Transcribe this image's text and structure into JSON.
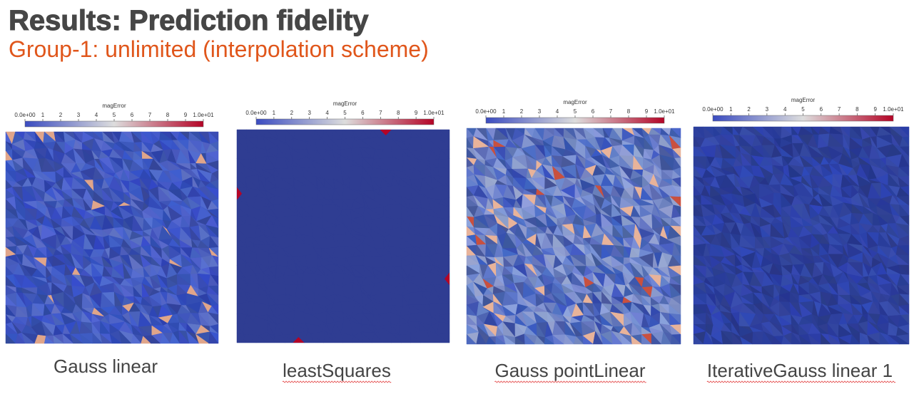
{
  "header": {
    "title": "Results: Prediction fidelity",
    "subtitle": "Group-1: unlimited (interpolation scheme)"
  },
  "panels": [
    {
      "colorbar_label": "magError",
      "ticks": [
        "0.0e+00",
        "1",
        "2",
        "3",
        "4",
        "5",
        "6",
        "7",
        "8",
        "9",
        "1.0e+01"
      ],
      "caption": "Gauss linear"
    },
    {
      "colorbar_label": "magError",
      "ticks": [
        "0.0e+00",
        "1",
        "2",
        "3",
        "4",
        "5",
        "6",
        "7",
        "8",
        "9",
        "1.0e+01"
      ],
      "caption": "leastSquares"
    },
    {
      "colorbar_label": "magError",
      "ticks": [
        "0.0e+00",
        "1",
        "2",
        "3",
        "4",
        "5",
        "6",
        "7",
        "8",
        "9",
        "1.0e+01"
      ],
      "caption": "Gauss pointLinear"
    },
    {
      "colorbar_label": "magError",
      "ticks": [
        "0.0e+00",
        "1",
        "2",
        "3",
        "4",
        "5",
        "6",
        "7",
        "8",
        "9",
        "1.0e+01"
      ],
      "caption": "IterativeGauss linear 1"
    }
  ]
}
